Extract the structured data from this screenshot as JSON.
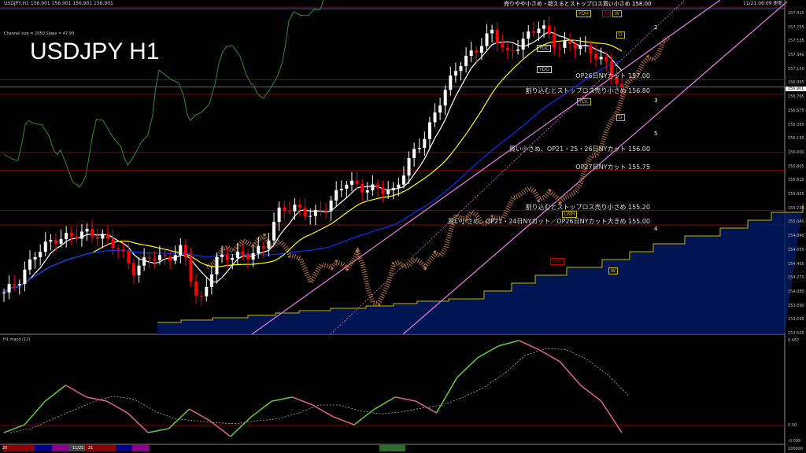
{
  "header": {
    "symbol_ohlc": "USDJPY,H1  156.901 156.901 156.901 156.901",
    "updated": "11/21 06:09 更新",
    "top_note": "売りやや小さめ・超えるとストップロス買い小さめ 158.00"
  },
  "overlay": {
    "title": "USDJPY H1",
    "channel_info": "Channel size = 2050 Slope = 47.90"
  },
  "annotations": [
    {
      "text": "OP26日NYカット 157.00",
      "price": 157.0
    },
    {
      "text": "割り込むとストップロス売り小さめ 156.80",
      "price": 156.8
    },
    {
      "text": "買い小さめ、OP21・25・26日NYカット 156.00",
      "price": 156.0
    },
    {
      "text": "OP27日NYカット 155.75",
      "price": 155.75
    },
    {
      "text": "割り込むとストップロス売り小さめ 155.20",
      "price": 155.2
    },
    {
      "text": "買い小さめ、OP21・24日NYカット／OP26日NYカット大きめ 155.00",
      "price": 155.0
    }
  ],
  "level_boxes": [
    {
      "label": "YDH",
      "color": "#c8b400"
    },
    {
      "label": "M",
      "color": "#c00000"
    },
    {
      "label": "W",
      "color": "#c8b400"
    },
    {
      "label": "YDC",
      "color": "#ccc"
    },
    {
      "label": "YDO",
      "color": "#ccc"
    },
    {
      "label": "YDL",
      "color": "#c8b400"
    },
    {
      "label": "D",
      "color": "#c8b400"
    },
    {
      "label": "D",
      "color": "#c8b400"
    },
    {
      "label": "LWH",
      "color": "#c8b400"
    },
    {
      "label": "LWL",
      "color": "#c00000"
    },
    {
      "label": "W",
      "color": "#c8b400"
    }
  ],
  "channel_numbers": [
    "2",
    "3",
    "4",
    "5"
  ],
  "price_axis": [
    "157.915",
    "157.725",
    "157.535",
    "157.340",
    "157.150",
    "156.955",
    "156.765",
    "156.575",
    "156.380",
    "156.190",
    "156.000",
    "155.805",
    "155.615",
    "155.425",
    "155.230",
    "155.040",
    "154.846",
    "154.655",
    "154.465",
    "154.270",
    "154.080",
    "153.890",
    "153.695",
    "153.505"
  ],
  "current_price": "156.901",
  "macd": {
    "label": "H1 macd (12)",
    "axis": [
      "0.467",
      "0.00",
      "-0.099"
    ]
  },
  "bottom": {
    "labels": [
      "20",
      "11/21",
      "21"
    ],
    "right": "100000"
  },
  "colors": {
    "bull": "#ffffff",
    "bear": "#ff0000",
    "ma_fast": "#ffffff",
    "ma_mid": "#ffff00",
    "ma_slow": "#0033ff",
    "channel": "#dd77dd",
    "macd_up": "#66cc33",
    "macd_down": "#dd6688",
    "level": "#8b0000"
  },
  "chart_data": {
    "type": "candlestick",
    "symbol": "USDJPY",
    "timeframe": "H1",
    "ylim": [
      153.505,
      157.915
    ],
    "price_path": [
      154.07,
      154.25,
      154.63,
      154.79,
      154.84,
      154.9,
      154.84,
      154.69,
      154.36,
      154.58,
      154.52,
      154.69,
      153.87,
      154.52,
      154.58,
      154.58,
      154.69,
      155.23,
      155.23,
      155.12,
      155.28,
      155.61,
      155.5,
      155.5,
      155.45,
      155.93,
      156.26,
      156.8,
      157.23,
      157.4,
      157.67,
      157.34,
      157.56,
      157.77,
      157.45,
      157.5,
      157.4,
      157.23,
      156.85
    ],
    "levels": [
      158.0,
      157.0,
      156.8,
      156.0,
      155.75,
      155.2,
      155.0
    ],
    "macd": {
      "ylim": [
        -0.099,
        0.467
      ],
      "values": [
        -0.038,
        0.004,
        0.13,
        0.215,
        0.152,
        0.13,
        0.067,
        -0.038,
        -0.017,
        0.088,
        0.025,
        -0.059,
        0.046,
        0.13,
        0.152,
        0.109,
        0.046,
        0.004,
        0.088,
        0.152,
        0.13,
        0.067,
        0.257,
        0.362,
        0.425,
        0.455,
        0.404,
        0.341,
        0.215,
        0.13,
        -0.038
      ]
    }
  }
}
